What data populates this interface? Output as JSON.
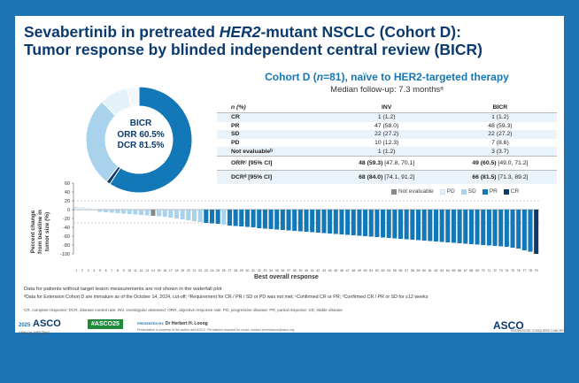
{
  "title_line1_pre": "Sevabertinib in pretreated ",
  "title_line1_her2": "HER2",
  "title_line1_post": "-mutant NSCLC (Cohort D):",
  "title_line2": "Tumor response by blinded independent central review (BICR)",
  "cohort_pre": "Cohort D (",
  "cohort_n": "n",
  "cohort_post": "=81), naïve to HER2-targeted therapy",
  "follow_up": "Median follow-up: 7.3 monthsᵃ",
  "donut": {
    "line1": "BICR",
    "line2": "ORR 60.5%",
    "line3": "DCR 81.5%",
    "segments": [
      {
        "label": "PR",
        "value": 59.3,
        "color": "#1378b8"
      },
      {
        "label": "CR",
        "value": 1.2,
        "color": "#0b3a6e"
      },
      {
        "label": "SD",
        "value": 27.2,
        "color": "#a9d3ec"
      },
      {
        "label": "PD",
        "value": 8.6,
        "color": "#e3f1f9"
      },
      {
        "label": "NE",
        "value": 3.7,
        "color": "#f2f8fc"
      }
    ]
  },
  "table": {
    "headers": [
      "n (%)",
      "INV",
      "BICR"
    ],
    "rows": [
      {
        "label": "CR",
        "inv": "1 (1.2)",
        "bicr": "1 (1.2)"
      },
      {
        "label": "PR",
        "inv": "47 (58.0)",
        "bicr": "48 (59.3)"
      },
      {
        "label": "SD",
        "inv": "22 (27.2)",
        "bicr": "22 (27.2)"
      },
      {
        "label": "PD",
        "inv": "10 (12.3)",
        "bicr": "7 (8.6)"
      },
      {
        "label": "Not evaluableᵇ",
        "inv": "1 (1.2)",
        "bicr": "3 (3.7)"
      }
    ],
    "orr_label": "ORRᶜ [95% CI]",
    "orr_inv": "48 (59.3)",
    "orr_inv_ci": " [47.8, 70.1]",
    "orr_bicr": "49 (60.5)",
    "orr_bicr_ci": " [49.0, 71.2]",
    "dcr_label": "DCRᵈ [95% CI]",
    "dcr_inv": "68 (84.0)",
    "dcr_inv_ci": " [74.1, 91.2]",
    "dcr_bicr": "66 (81.5)",
    "dcr_bicr_ci": " [71.3, 89.2]"
  },
  "legend": [
    {
      "label": "Not evaluable",
      "color": "#888888"
    },
    {
      "label": "PD",
      "color": "#e3f1f9"
    },
    {
      "label": "SD",
      "color": "#a9d3ec"
    },
    {
      "label": "PR",
      "color": "#1378b8"
    },
    {
      "label": "CR",
      "color": "#0b3a6e"
    }
  ],
  "y_axis_label_line1": "Percent change",
  "y_axis_label_line2": "from baseline in",
  "y_axis_label_line3": "tumor size (%)",
  "x_axis_title": "Best overall response",
  "chart_data": {
    "type": "bar",
    "xlabel": "Best overall response",
    "ylabel": "Percent change from baseline in tumor size (%)",
    "ylim": [
      -100,
      60
    ],
    "yticks": [
      60,
      40,
      20,
      0,
      -20,
      -40,
      -60,
      -80,
      -100
    ],
    "categories": [
      "1",
      "2",
      "3",
      "4",
      "5",
      "6",
      "7",
      "8",
      "9",
      "10",
      "11",
      "12",
      "13",
      "14",
      "15",
      "16",
      "17",
      "18",
      "19",
      "20",
      "21",
      "22",
      "23",
      "24",
      "25",
      "26",
      "27",
      "28",
      "29",
      "30",
      "31",
      "32",
      "33",
      "34",
      "35",
      "36",
      "37",
      "38",
      "39",
      "40",
      "41",
      "42",
      "43",
      "44",
      "45",
      "46",
      "47",
      "48",
      "49",
      "50",
      "51",
      "52",
      "53",
      "54",
      "55",
      "56",
      "57",
      "58",
      "59",
      "60",
      "61",
      "62",
      "63",
      "64",
      "65",
      "66",
      "67",
      "68",
      "69",
      "70",
      "71",
      "72",
      "73",
      "74",
      "75",
      "76",
      "77",
      "78",
      "79"
    ],
    "values": [
      7,
      6,
      4,
      2,
      -5,
      -6,
      -7,
      -8,
      -9,
      -10,
      -11,
      -12,
      -13,
      -14,
      -15,
      -16,
      -18,
      -20,
      -22,
      -24,
      -26,
      -28,
      -30,
      -31,
      -32,
      -34,
      -36,
      -37,
      -38,
      -39,
      -40,
      -42,
      -43,
      -44,
      -45,
      -46,
      -47,
      -48,
      -49,
      -50,
      -51,
      -52,
      -53,
      -54,
      -55,
      -56,
      -57,
      -58,
      -59,
      -60,
      -61,
      -62,
      -63,
      -64,
      -65,
      -66,
      -67,
      -68,
      -69,
      -70,
      -71,
      -72,
      -73,
      -74,
      -75,
      -76,
      -77,
      -78,
      -79,
      -80,
      -81,
      -82,
      -83,
      -84,
      -86,
      -88,
      -92,
      -95,
      -100
    ],
    "responses": [
      "PD",
      "PD",
      "PD",
      "PD",
      "SD",
      "SD",
      "SD",
      "SD",
      "SD",
      "SD",
      "SD",
      "SD",
      "SD",
      "NE",
      "SD",
      "SD",
      "SD",
      "SD",
      "SD",
      "SD",
      "SD",
      "SD",
      "PR",
      "PR",
      "PR",
      "SD",
      "PR",
      "PR",
      "PR",
      "PR",
      "PR",
      "PR",
      "PR",
      "PR",
      "PR",
      "PR",
      "PR",
      "PR",
      "PR",
      "PR",
      "PR",
      "PR",
      "PR",
      "PR",
      "PR",
      "PR",
      "PR",
      "PR",
      "PR",
      "PR",
      "PR",
      "PR",
      "PR",
      "PR",
      "PR",
      "PR",
      "PR",
      "PR",
      "PR",
      "PR",
      "PR",
      "PR",
      "PR",
      "PR",
      "PR",
      "PR",
      "PR",
      "PR",
      "PR",
      "PR",
      "PR",
      "PR",
      "PR",
      "PR",
      "PR",
      "PR",
      "PR",
      "PR",
      "CR"
    ],
    "colors": {
      "PD": "#dcebf5",
      "SD": "#a9d3ec",
      "PR": "#1378b8",
      "CR": "#0b3a6e",
      "NE": "#888888"
    }
  },
  "footnote1": "Data for patients without target lesion measurements are not shown in the waterfall plot",
  "footnote2": "ᵃData for Extension Cohort D are immature as of the October 14, 2024, cut-off; ᵇRequirement for CR / PR / SD or PD was not met; ᶜConfirmed CR or PR; ᵈConfirmed CR / PR or SD for ≥12 weeks",
  "footnote3": "CR, complete response; DCR, disease control rate; INV, investigator assessed; ORR, objective response rate; PD, progressive disease; PR, partial response; SD, stable disease",
  "footer": {
    "year": "2025",
    "asco": "ASCO",
    "meeting": "ANNUAL MEETING",
    "hashtag": "#ASCO25",
    "presented_by": "PRESENTED BY:",
    "presenter": "Dr Herbert H. Loong",
    "note": "Presentation is property of the author and ASCO. Permission required for reuse; contact permissions@asco.org",
    "asco_right": "ASCO",
    "tagline": "KNOWLEDGE CONQUERS CANCER"
  }
}
